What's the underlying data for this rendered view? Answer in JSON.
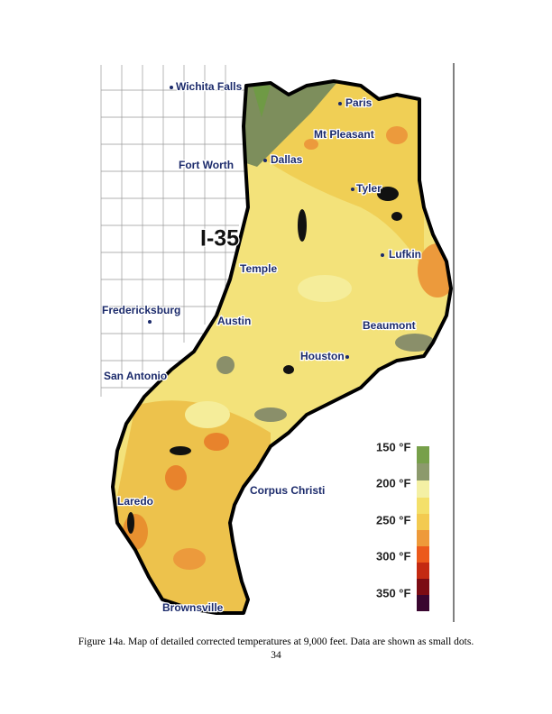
{
  "map": {
    "labels": [
      "Wichita Falls",
      "Paris",
      "Mt Pleasant",
      "Dallas",
      "Fort Worth",
      "Tyler",
      "I-35",
      "Lufkin",
      "Temple",
      "Fredericksburg",
      "Austin",
      "Beaumont",
      "Houston",
      "San Antonio",
      "Corpus Christi",
      "Laredo",
      "Brownsville"
    ],
    "legend": [
      "150 °F",
      "200 °F",
      "250 °F",
      "300 °F",
      "350 °F"
    ]
  },
  "caption": "Figure 14a.  Map of detailed corrected temperatures at 9,000 feet.  Data are shown as small dots.",
  "page_number": "34"
}
